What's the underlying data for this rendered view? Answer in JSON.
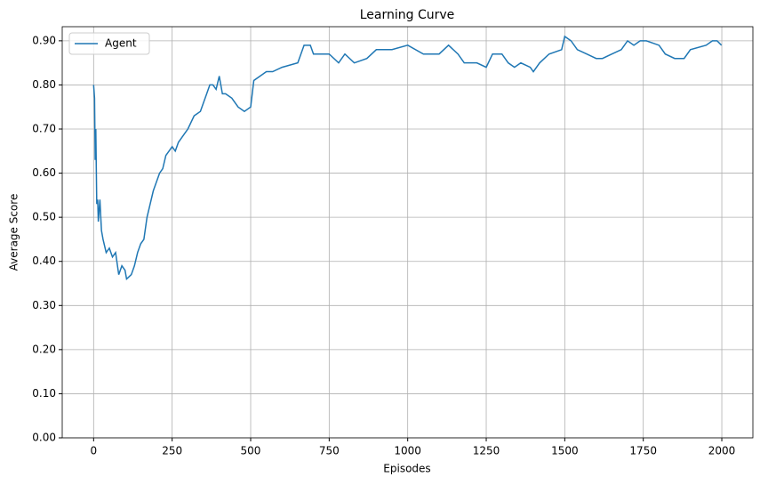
{
  "chart_data": {
    "type": "line",
    "title": "Learning Curve",
    "x_label": "Episodes",
    "y_label": "Average Score",
    "x": [
      0,
      3,
      5,
      7,
      10,
      13,
      15,
      20,
      25,
      30,
      40,
      50,
      60,
      70,
      80,
      90,
      100,
      105,
      120,
      130,
      140,
      150,
      160,
      170,
      180,
      190,
      200,
      210,
      220,
      230,
      240,
      250,
      260,
      270,
      280,
      290,
      300,
      320,
      340,
      350,
      360,
      370,
      380,
      390,
      400,
      410,
      420,
      440,
      460,
      480,
      500,
      510,
      530,
      550,
      570,
      600,
      650,
      670,
      690,
      700,
      750,
      780,
      800,
      830,
      870,
      900,
      950,
      1000,
      1050,
      1100,
      1130,
      1160,
      1180,
      1220,
      1250,
      1270,
      1300,
      1320,
      1340,
      1360,
      1390,
      1400,
      1420,
      1450,
      1490,
      1500,
      1520,
      1540,
      1570,
      1600,
      1620,
      1650,
      1680,
      1700,
      1720,
      1740,
      1760,
      1800,
      1820,
      1850,
      1880,
      1900,
      1950,
      1970,
      1985,
      1999
    ],
    "series": [
      {
        "name": "Agent",
        "color": "#1f77b4",
        "values": [
          0.8,
          0.77,
          0.63,
          0.7,
          0.53,
          0.54,
          0.49,
          0.54,
          0.47,
          0.45,
          0.42,
          0.43,
          0.41,
          0.42,
          0.37,
          0.39,
          0.38,
          0.36,
          0.37,
          0.39,
          0.42,
          0.44,
          0.45,
          0.5,
          0.53,
          0.56,
          0.58,
          0.6,
          0.61,
          0.64,
          0.65,
          0.66,
          0.65,
          0.67,
          0.68,
          0.69,
          0.7,
          0.73,
          0.74,
          0.76,
          0.78,
          0.8,
          0.8,
          0.79,
          0.82,
          0.78,
          0.78,
          0.77,
          0.75,
          0.74,
          0.75,
          0.81,
          0.82,
          0.83,
          0.83,
          0.84,
          0.85,
          0.89,
          0.89,
          0.87,
          0.87,
          0.85,
          0.87,
          0.85,
          0.86,
          0.88,
          0.88,
          0.89,
          0.87,
          0.87,
          0.89,
          0.87,
          0.85,
          0.85,
          0.84,
          0.87,
          0.87,
          0.85,
          0.84,
          0.85,
          0.84,
          0.83,
          0.85,
          0.87,
          0.88,
          0.91,
          0.9,
          0.88,
          0.87,
          0.86,
          0.86,
          0.87,
          0.88,
          0.9,
          0.89,
          0.9,
          0.9,
          0.89,
          0.87,
          0.86,
          0.86,
          0.88,
          0.89,
          0.9,
          0.9,
          0.89
        ]
      }
    ],
    "xlim": [
      -99.95,
      2098.95
    ],
    "ylim": [
      0,
      0.932
    ],
    "xticks": [
      0,
      250,
      500,
      750,
      1000,
      1250,
      1500,
      1750,
      2000
    ],
    "yticks": [
      {
        "value": 0,
        "label": "0.00"
      },
      {
        "value": 0.1,
        "label": "0.10"
      },
      {
        "value": 0.2,
        "label": "0.20"
      },
      {
        "value": 0.3,
        "label": "0.30"
      },
      {
        "value": 0.4,
        "label": "0.40"
      },
      {
        "value": 0.5,
        "label": "0.50"
      },
      {
        "value": 0.6,
        "label": "0.60"
      },
      {
        "value": 0.7,
        "label": "0.70"
      },
      {
        "value": 0.8,
        "label": "0.80"
      },
      {
        "value": 0.9,
        "label": "0.90"
      }
    ],
    "grid": true,
    "legend": "upper left"
  }
}
